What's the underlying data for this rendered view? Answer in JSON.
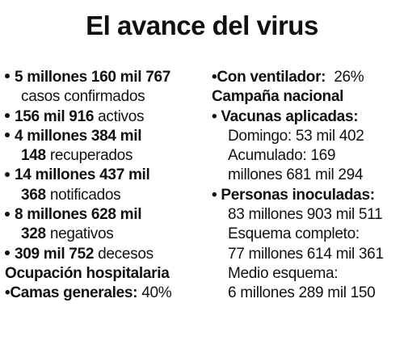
{
  "title": "El avance del virus",
  "left": {
    "confirmados_num": "5 millones 160 mil 767",
    "confirmados_label": "casos confirmados",
    "activos_num": "156 mil 916",
    "activos_label": "activos",
    "recuperados_num_1": "4 millones 384 mil",
    "recuperados_num_2": "148",
    "recuperados_label": "recuperados",
    "notificados_num_1": "14 millones 437 mil",
    "notificados_num_2": "368",
    "notificados_label": "notificados",
    "negativos_num_1": "8 millones 628 mil",
    "negativos_num_2": "328",
    "negativos_label": "negativos",
    "decesos_num": "309 mil 752",
    "decesos_label": "decesos",
    "hosp_heading": "Ocupación hospitalaria",
    "camas_label": "•Camas generales:",
    "camas_value": "40%"
  },
  "right": {
    "ventilador_label": "•Con ventilador:",
    "ventilador_value": "26%",
    "campana_heading": "Campaña nacional",
    "vacunas_heading": "• Vacunas aplicadas:",
    "domingo": "Domingo: 53 mil 402",
    "acumulado_1": "Acumulado: 169",
    "acumulado_2": "millones 681 mil 294",
    "personas_heading": "• Personas inoculadas:",
    "personas_value": "83 millones 903 mil 511",
    "completo_label": "Esquema completo:",
    "completo_value": "77 millones 614 mil 361",
    "medio_label": "Medio esquema:",
    "medio_value": "6 millones 289 mil 150"
  }
}
